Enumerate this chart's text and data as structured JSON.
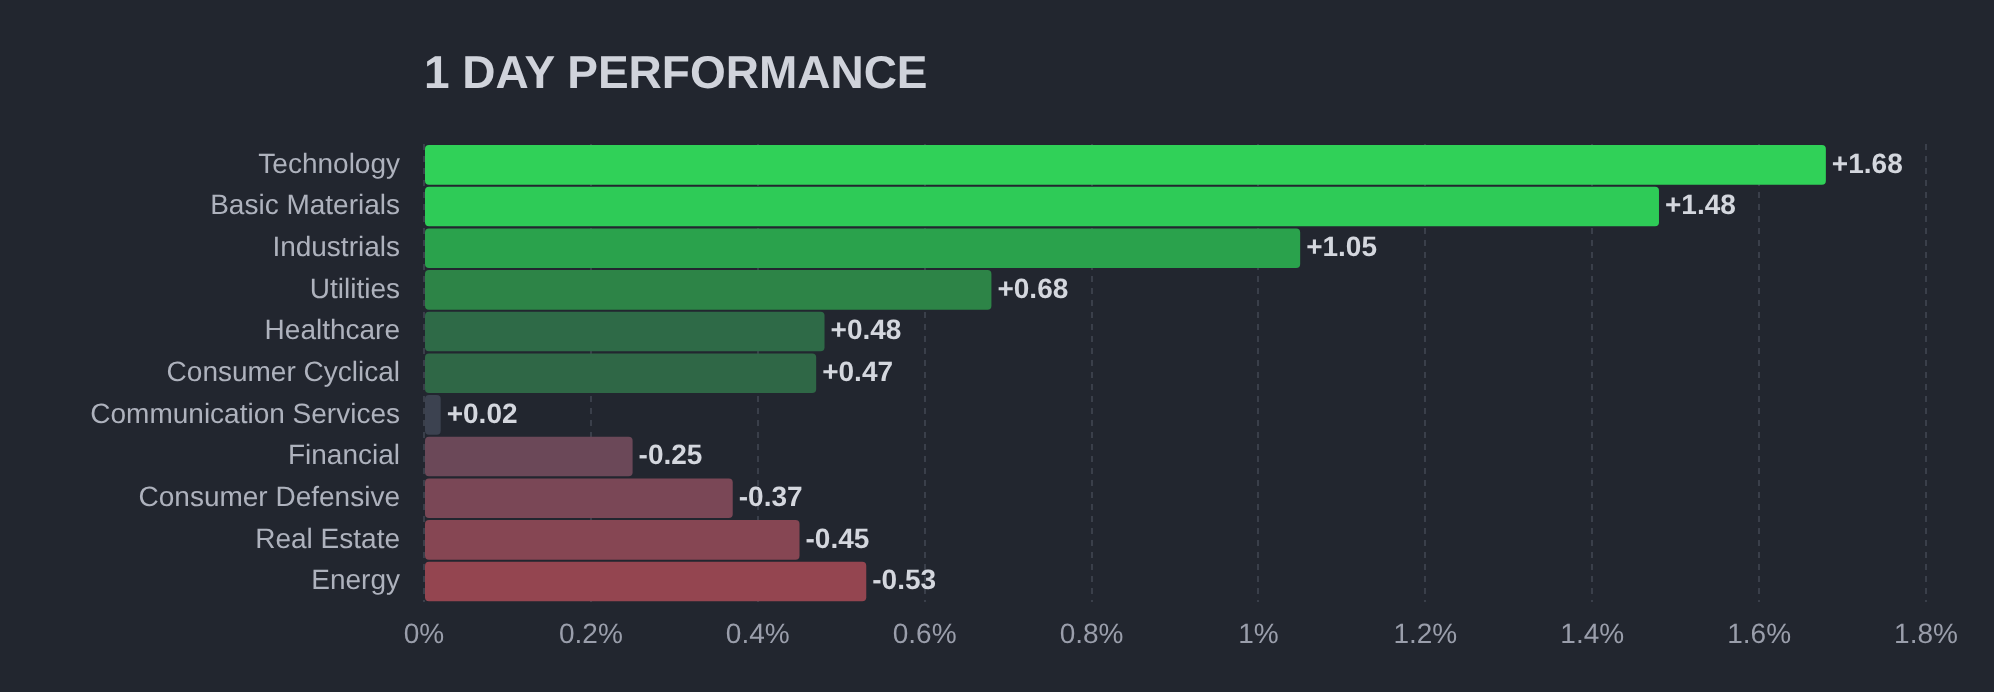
{
  "chart_data": {
    "type": "bar",
    "orientation": "horizontal",
    "title": "1 DAY PERFORMANCE",
    "categories": [
      "Technology",
      "Basic Materials",
      "Industrials",
      "Utilities",
      "Healthcare",
      "Consumer Cyclical",
      "Communication Services",
      "Financial",
      "Consumer Defensive",
      "Real Estate",
      "Energy"
    ],
    "values": [
      1.68,
      1.48,
      1.05,
      0.68,
      0.48,
      0.47,
      0.02,
      -0.25,
      -0.37,
      -0.45,
      -0.53
    ],
    "base": [
      0,
      0,
      0,
      0,
      0,
      0,
      0,
      0.25,
      0.37,
      0.45,
      0.53
    ],
    "value_labels": [
      "+1.68",
      "+1.48",
      "+1.05",
      "+0.68",
      "+0.48",
      "+0.47",
      "+0.02",
      "-0.25",
      "-0.37",
      "-0.45",
      "-0.53"
    ],
    "colors": [
      "#30d158",
      "#2ecb57",
      "#2aa24c",
      "#2d8447",
      "#2e6a47",
      "#2f6746",
      "#3c4250",
      "#6b4858",
      "#7a4756",
      "#864653",
      "#944550"
    ],
    "xlim": [
      0,
      1.8
    ],
    "xticks": [
      {
        "value": 0,
        "label": "0%"
      },
      {
        "value": 0.2,
        "label": "0.2%"
      },
      {
        "value": 0.4,
        "label": "0.4%"
      },
      {
        "value": 0.6,
        "label": "0.6%"
      },
      {
        "value": 0.8,
        "label": "0.8%"
      },
      {
        "value": 1,
        "label": "1%"
      },
      {
        "value": 1.2,
        "label": "1.2%"
      },
      {
        "value": 1.4,
        "label": "1.4%"
      },
      {
        "value": 1.6,
        "label": "1.6%"
      },
      {
        "value": 1.8,
        "label": "1.8%"
      }
    ],
    "grid": "x",
    "legend": false
  }
}
